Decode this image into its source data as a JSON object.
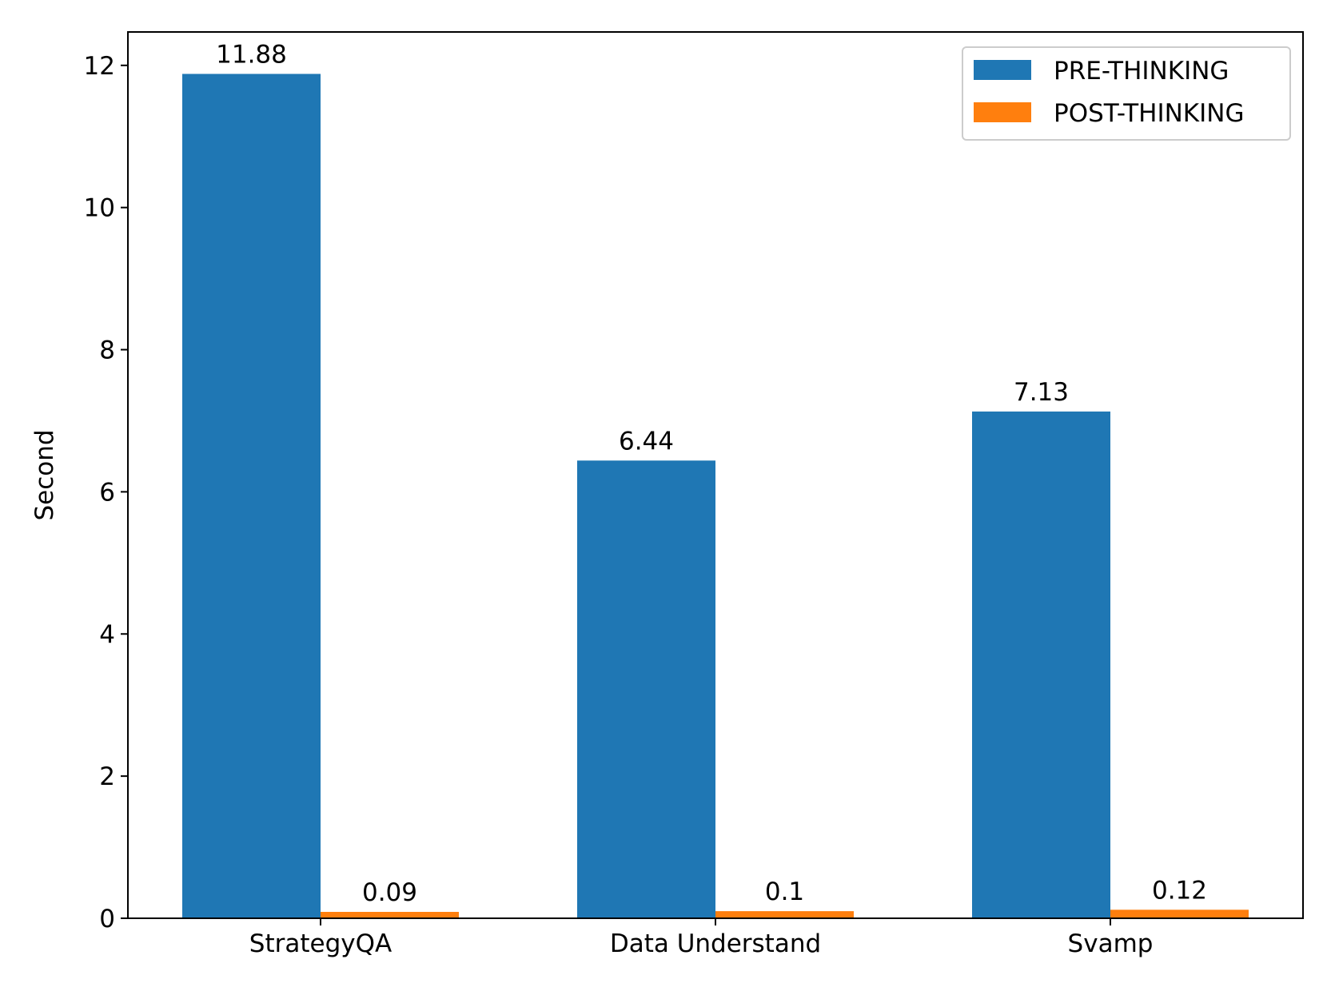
{
  "chart_data": {
    "type": "bar",
    "categories": [
      "StrategyQA",
      "Data Understand",
      "Svamp"
    ],
    "series": [
      {
        "name": "PRE-THINKING",
        "values": [
          11.88,
          6.44,
          7.13
        ],
        "color": "#1f77b4"
      },
      {
        "name": "POST-THINKING",
        "values": [
          0.09,
          0.1,
          0.12
        ],
        "color": "#ff7f0e"
      }
    ],
    "data_labels": [
      [
        "11.88",
        "6.44",
        "7.13"
      ],
      [
        "0.09",
        "0.1",
        "0.12"
      ]
    ],
    "title": "",
    "xlabel": "",
    "ylabel": "Second",
    "ylim": [
      0,
      12.47
    ],
    "yticks": [
      0,
      2,
      4,
      6,
      8,
      10,
      12
    ],
    "ytick_labels": [
      "0",
      "2",
      "4",
      "6",
      "8",
      "10",
      "12"
    ],
    "grid": false,
    "legend_position": "top-right"
  }
}
